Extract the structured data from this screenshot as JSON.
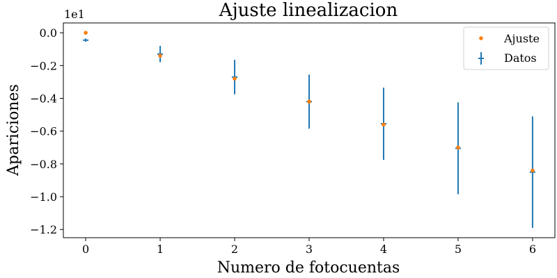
{
  "chart_data": {
    "type": "scatter",
    "title": "Ajuste linealizacion",
    "xlabel": "Numero de fotocuentas",
    "ylabel": "Apariciones",
    "y_offset_label": "1e1",
    "xlim": [
      -0.3,
      6.3
    ],
    "ylim": [
      -1.25,
      0.06
    ],
    "x_ticks": [
      0,
      1,
      2,
      3,
      4,
      5,
      6
    ],
    "x_tick_labels": [
      "0",
      "1",
      "2",
      "3",
      "4",
      "5",
      "6"
    ],
    "y_ticks": [
      0.0,
      -0.2,
      -0.4,
      -0.6,
      -0.8,
      -1.0,
      -1.2
    ],
    "y_tick_labels": [
      "0.0",
      "−0.2",
      "−0.4",
      "−0.6",
      "−0.8",
      "−1.0",
      "−1.2"
    ],
    "grid": false,
    "legend_position": "top-right",
    "series": [
      {
        "name": "Ajuste",
        "kind": "points",
        "color": "#ff7f0e",
        "x": [
          0,
          1,
          2,
          3,
          4,
          5,
          6
        ],
        "y": [
          0.0,
          -0.14,
          -0.28,
          -0.42,
          -0.56,
          -0.7,
          -0.84
        ]
      },
      {
        "name": "Datos",
        "kind": "errorbar",
        "color": "#1f77b4",
        "x": [
          0,
          1,
          2,
          3,
          4,
          5,
          6
        ],
        "y": [
          -0.045,
          -0.13,
          -0.27,
          -0.42,
          -0.555,
          -0.705,
          -0.85
        ],
        "yerr": [
          0.01,
          0.05,
          0.105,
          0.165,
          0.22,
          0.28,
          0.34
        ]
      }
    ]
  }
}
